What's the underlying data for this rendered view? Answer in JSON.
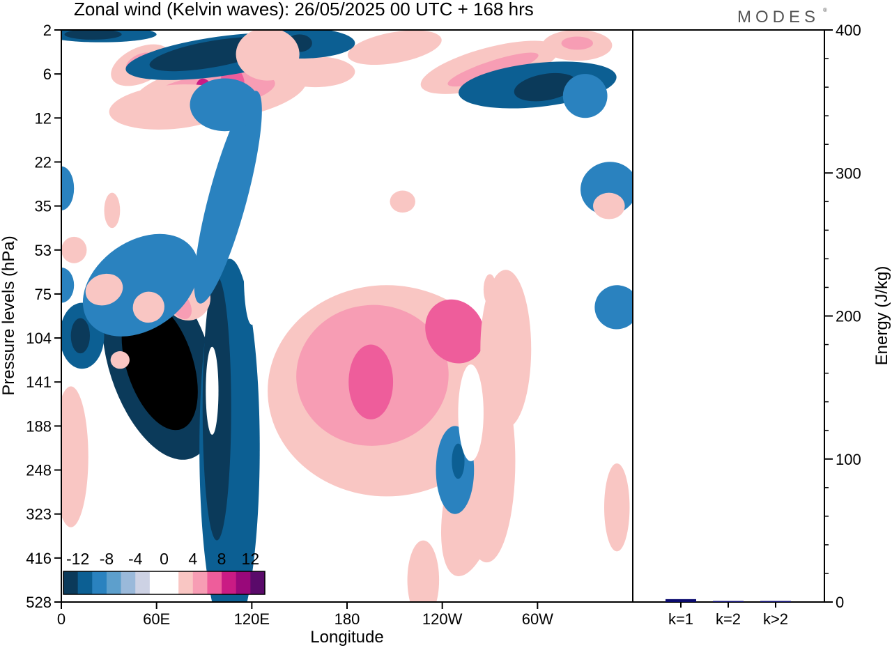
{
  "brand": "MODES",
  "brand_mark": "®",
  "chart_data": [
    {
      "type": "heatmap",
      "title": "Zonal wind (Kelvin waves):  26/05/2025  00 UTC  + 168 hrs",
      "xlabel": "Longitude",
      "ylabel": "Pressure levels (hPa)",
      "x_ticks": [
        {
          "lon": 0,
          "label": "0"
        },
        {
          "lon": 60,
          "label": "60E"
        },
        {
          "lon": 120,
          "label": "120E"
        },
        {
          "lon": 180,
          "label": "180"
        },
        {
          "lon": 240,
          "label": "120W"
        },
        {
          "lon": 300,
          "label": "60W"
        }
      ],
      "xlim": [
        0,
        360
      ],
      "y_ticks": [
        "2",
        "6",
        "12",
        "22",
        "35",
        "53",
        "75",
        "104",
        "141",
        "188",
        "248",
        "323",
        "416",
        "528"
      ],
      "grid": false,
      "colorbar": {
        "placement": "bottom-left",
        "labels": [
          "-12",
          "-8",
          "-4",
          "0",
          "4",
          "8",
          "12"
        ],
        "colors": [
          "#0b3a5a",
          "#0c5f93",
          "#2a82bf",
          "#5d9fcc",
          "#9ab9da",
          "#cdd2e4",
          "#ffffff",
          "#ffffff",
          "#f9c6c3",
          "#f79db4",
          "#ee5d9b",
          "#ca1b84",
          "#99087a",
          "#5a0a6a"
        ]
      },
      "blobs": [
        {
          "lon": 62,
          "lev": 7.55,
          "rx": 32,
          "ry": 2.3,
          "level": -6,
          "rot": -18
        },
        {
          "lon": 62,
          "lev": 7.6,
          "rx": 21,
          "ry": 1.55,
          "level": -7,
          "rot": -18
        },
        {
          "lon": 64,
          "lev": 7.6,
          "rx": 14,
          "ry": 1.05,
          "level": -8,
          "rot": -18
        },
        {
          "lon": 63,
          "lev": 7.65,
          "rx": 9,
          "ry": 0.75,
          "level": -9,
          "rot": -15
        },
        {
          "lon": 106,
          "lev": 9.5,
          "rx": 19,
          "ry": 4.3,
          "level": -5,
          "rot": 0
        },
        {
          "lon": 98,
          "lev": 8.6,
          "rx": 9,
          "ry": 3,
          "level": -6,
          "rot": 0
        },
        {
          "lon": 13,
          "lev": 6.95,
          "rx": 14,
          "ry": 0.75,
          "level": -5,
          "rot": 0
        },
        {
          "lon": 12,
          "lev": 6.95,
          "rx": 6,
          "ry": 0.4,
          "level": -6,
          "rot": 0
        },
        {
          "lon": 205,
          "lev": 8.2,
          "rx": 75,
          "ry": 2.4,
          "level": 5,
          "rot": 0
        },
        {
          "lon": 196,
          "lev": 7.85,
          "rx": 48,
          "ry": 1.6,
          "level": 6,
          "rot": -4
        },
        {
          "lon": 195,
          "lev": 8.0,
          "rx": 14,
          "ry": 0.85,
          "level": 7,
          "rot": 0
        },
        {
          "lon": 248,
          "lev": 6.85,
          "rx": 18,
          "ry": 0.75,
          "level": 7,
          "rot": -30
        },
        {
          "lon": 260,
          "lev": 10.55,
          "rx": 18,
          "ry": 1.9,
          "level": 5,
          "rot": 12
        },
        {
          "lon": 228,
          "lev": 12.5,
          "rx": 10,
          "ry": 0.9,
          "level": 5,
          "rot": 0
        },
        {
          "lon": 280,
          "lev": 7.25,
          "rx": 16,
          "ry": 1.8,
          "level": 5,
          "rot": 0
        },
        {
          "lon": 6,
          "lev": 9.7,
          "rx": 11,
          "ry": 1.6,
          "level": 5,
          "rot": 0
        },
        {
          "lon": 80,
          "lev": 6.1,
          "rx": 14,
          "ry": 0.5,
          "level": 5,
          "rot": -30
        },
        {
          "lon": 75,
          "lev": 6.25,
          "rx": 6,
          "ry": 0.35,
          "level": 6,
          "rot": -30
        },
        {
          "lon": 100,
          "lev": 1.4,
          "rx": 55,
          "ry": 0.65,
          "level": 5,
          "rot": -8
        },
        {
          "lon": 95,
          "lev": 1.4,
          "rx": 40,
          "ry": 0.4,
          "level": 6,
          "rot": -8
        },
        {
          "lon": 108,
          "lev": 1.15,
          "rx": 7,
          "ry": 0.35,
          "level": 7,
          "rot": -20
        },
        {
          "lon": 90,
          "lev": 1.35,
          "rx": 5,
          "ry": 0.25,
          "level": 8,
          "rot": -15
        },
        {
          "lon": 50,
          "lev": 0.8,
          "rx": 20,
          "ry": 0.4,
          "level": 5,
          "rot": -25
        },
        {
          "lon": 50,
          "lev": 0.75,
          "rx": 10,
          "ry": 0.2,
          "level": 6,
          "rot": -25
        },
        {
          "lon": 270,
          "lev": 0.85,
          "rx": 45,
          "ry": 0.45,
          "level": 5,
          "rot": -15
        },
        {
          "lon": 272,
          "lev": 0.9,
          "rx": 30,
          "ry": 0.2,
          "level": 6,
          "rot": -18
        },
        {
          "lon": 325,
          "lev": 0.35,
          "rx": 22,
          "ry": 0.35,
          "level": 5,
          "rot": 0
        },
        {
          "lon": 325,
          "lev": 0.3,
          "rx": 10,
          "ry": 0.15,
          "level": 6,
          "rot": 0
        },
        {
          "lon": 210,
          "lev": 0.4,
          "rx": 30,
          "ry": 0.35,
          "level": 5,
          "rot": -10
        },
        {
          "lon": 160,
          "lev": 0.95,
          "rx": 25,
          "ry": 0.35,
          "level": 5,
          "rot": 0
        },
        {
          "lon": 100,
          "lev": 0.6,
          "rx": 60,
          "ry": 0.45,
          "level": -5,
          "rot": -8
        },
        {
          "lon": 95,
          "lev": 0.55,
          "rx": 40,
          "ry": 0.3,
          "level": -6,
          "rot": -10
        },
        {
          "lon": 25,
          "lev": 0.1,
          "rx": 35,
          "ry": 0.18,
          "level": -5,
          "rot": 0
        },
        {
          "lon": 20,
          "lev": 0.1,
          "rx": 18,
          "ry": 0.12,
          "level": -6,
          "rot": 0
        },
        {
          "lon": 300,
          "lev": 1.25,
          "rx": 50,
          "ry": 0.5,
          "level": -5,
          "rot": -6
        },
        {
          "lon": 305,
          "lev": 1.3,
          "rx": 20,
          "ry": 0.3,
          "level": -6,
          "rot": -10
        },
        {
          "lon": 150,
          "lev": 0.3,
          "rx": 35,
          "ry": 0.35,
          "level": -5,
          "rot": 0
        },
        {
          "lon": 150,
          "lev": 0.3,
          "rx": 8,
          "ry": 0.2,
          "level": -6,
          "rot": 0
        },
        {
          "lon": 70,
          "lev": 1.75,
          "rx": 40,
          "ry": 0.5,
          "level": 5,
          "rot": -5
        },
        {
          "lon": 268,
          "lev": 9.8,
          "rx": 18,
          "ry": 2.3,
          "level": 5,
          "rot": 0
        },
        {
          "lon": 350,
          "lev": 10.85,
          "rx": 8,
          "ry": 1,
          "level": 5,
          "rot": 0
        },
        {
          "lon": 130,
          "lev": 0.55,
          "rx": 20,
          "ry": 0.6,
          "level": 5,
          "rot": 0
        },
        {
          "lon": 50,
          "lev": 5.8,
          "rx": 40,
          "ry": 1.0,
          "level": -4,
          "rot": -35
        },
        {
          "lon": 105,
          "lev": 3.8,
          "rx": 12,
          "ry": 2.5,
          "level": -4,
          "rot": 15
        },
        {
          "lon": 345,
          "lev": 3.6,
          "rx": 18,
          "ry": 0.6,
          "level": -4,
          "rot": -15
        },
        {
          "lon": 248,
          "lev": 10.0,
          "rx": 12,
          "ry": 1.0,
          "level": -4,
          "rot": 0
        },
        {
          "lon": 250,
          "lev": 9.8,
          "rx": 4,
          "ry": 0.4,
          "level": -5,
          "rot": 0
        },
        {
          "lon": 350,
          "lev": 6.3,
          "rx": 14,
          "ry": 0.5,
          "level": -4,
          "rot": -20
        },
        {
          "lon": 0,
          "lev": 3.6,
          "rx": 8,
          "ry": 0.5,
          "level": -4,
          "rot": 0
        },
        {
          "lon": 0,
          "lev": 5.8,
          "rx": 8,
          "ry": 0.4,
          "level": -4,
          "rot": 0
        },
        {
          "lon": 103,
          "lev": 1.7,
          "rx": 22,
          "ry": 0.6,
          "level": -4,
          "rot": 0
        },
        {
          "lon": 330,
          "lev": 1.5,
          "rx": 14,
          "ry": 0.5,
          "level": -4,
          "rot": 0
        },
        {
          "lon": 345,
          "lev": 4.0,
          "rx": 10,
          "ry": 0.3,
          "level": 5,
          "rot": 0
        },
        {
          "lon": 258,
          "lev": 8.7,
          "rx": 8,
          "ry": 1.1,
          "level": 0,
          "rot": 0
        },
        {
          "lon": 95,
          "lev": 8.2,
          "rx": 4,
          "ry": 1.0,
          "level": 0,
          "rot": 0
        },
        {
          "lon": 120,
          "lev": 5.6,
          "rx": 5,
          "ry": 1.1,
          "level": 0,
          "rot": 0
        },
        {
          "lon": 27,
          "lev": 5.9,
          "rx": 12,
          "ry": 0.35,
          "level": 5,
          "rot": -20
        },
        {
          "lon": 55,
          "lev": 6.3,
          "rx": 10,
          "ry": 0.35,
          "level": 5,
          "rot": -25
        },
        {
          "lon": 270,
          "lev": 5.9,
          "rx": 4,
          "ry": 0.35,
          "level": 5,
          "rot": 0
        },
        {
          "lon": 37,
          "lev": 7.5,
          "rx": 6,
          "ry": 0.2,
          "level": 5,
          "rot": 0
        },
        {
          "lon": 215,
          "lev": 3.9,
          "rx": 8,
          "ry": 0.25,
          "level": 5,
          "rot": 0
        },
        {
          "lon": 32,
          "lev": 4.1,
          "rx": 5,
          "ry": 0.4,
          "level": 5,
          "rot": 0
        },
        {
          "lon": 8,
          "lev": 5.0,
          "rx": 8,
          "ry": 0.3,
          "level": 5,
          "rot": 0
        }
      ]
    },
    {
      "type": "bar",
      "categories": [
        "k=1",
        "k=2",
        "k>2"
      ],
      "values": [
        2,
        0.6,
        0.6
      ],
      "ylabel": "Energy (J/kg)",
      "ylim": [
        0,
        400
      ],
      "y_ticks": [
        0,
        100,
        200,
        300,
        400
      ],
      "bar_color": "#0a0a6e"
    }
  ]
}
